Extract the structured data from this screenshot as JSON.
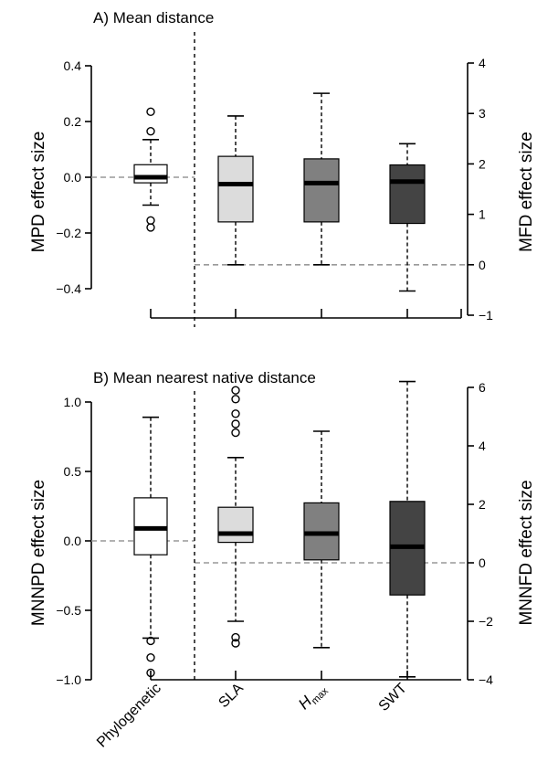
{
  "chart_data": [
    {
      "type": "box",
      "title": "A) Mean distance",
      "ylabel_left": "MPD effect size",
      "ylabel_right": "MFD effect size",
      "left_ticks": [
        -0.4,
        -0.2,
        0.0,
        0.2,
        0.4
      ],
      "left_tick_labels": [
        "−0.4",
        "−0.2",
        "0.0",
        "0.2",
        "0.4"
      ],
      "right_ticks": [
        -1,
        0,
        1,
        2,
        3,
        4
      ],
      "right_tick_labels": [
        "−1",
        "0",
        "1",
        "2",
        "3",
        "4"
      ],
      "left_ylim": [
        -0.5,
        0.4
      ],
      "right_ylim": [
        -1,
        4
      ],
      "left_reference": 0,
      "right_reference": 0,
      "boxes": [
        {
          "category": "Phylogenetic",
          "axis": "left",
          "color": "#ffffff",
          "whisker_low": -0.1,
          "q1": -0.02,
          "median": 0.0,
          "q3": 0.045,
          "whisker_high": 0.135,
          "outliers": [
            0.165,
            0.235,
            -0.155,
            -0.18
          ]
        },
        {
          "category": "SLA",
          "axis": "right",
          "color": "#dcdcdc",
          "whisker_low": 0.0,
          "q1": 0.85,
          "median": 1.6,
          "q3": 2.15,
          "whisker_high": 2.95,
          "outliers": []
        },
        {
          "category": "Hmax",
          "axis": "right",
          "color": "#808080",
          "whisker_low": 0.0,
          "q1": 0.85,
          "median": 1.62,
          "q3": 2.1,
          "whisker_high": 3.4,
          "outliers": []
        },
        {
          "category": "SWT",
          "axis": "right",
          "color": "#444444",
          "whisker_low": -0.52,
          "q1": 0.82,
          "median": 1.65,
          "q3": 1.98,
          "whisker_high": 2.4,
          "outliers": []
        }
      ]
    },
    {
      "type": "box",
      "title": "B) Mean nearest native distance",
      "ylabel_left": "MNNPD effect size",
      "ylabel_right": "MNNFD effect size",
      "left_ticks": [
        -1.0,
        -0.5,
        0.0,
        0.5,
        1.0
      ],
      "left_tick_labels": [
        "−1.0",
        "−0.5",
        "0.0",
        "0.5",
        "1.0"
      ],
      "right_ticks": [
        -4,
        -2,
        0,
        2,
        4,
        6
      ],
      "right_tick_labels": [
        "−4",
        "−2",
        "0",
        "2",
        "4",
        "6"
      ],
      "left_ylim": [
        -1.0,
        1.0
      ],
      "right_ylim": [
        -4,
        6
      ],
      "left_reference": 0,
      "right_reference": 0,
      "boxes": [
        {
          "category": "Phylogenetic",
          "axis": "left",
          "color": "#ffffff",
          "whisker_low": -0.7,
          "q1": -0.1,
          "median": 0.09,
          "q3": 0.31,
          "whisker_high": 0.89,
          "outliers": [
            -0.72,
            -0.84,
            -0.95
          ]
        },
        {
          "category": "SLA",
          "axis": "right",
          "color": "#dcdcdc",
          "whisker_low": -2.0,
          "q1": 0.7,
          "median": 1.0,
          "q3": 1.9,
          "whisker_high": 3.6,
          "outliers": [
            -2.55,
            -2.75,
            4.75,
            5.1,
            5.6,
            5.9,
            4.45
          ]
        },
        {
          "category": "Hmax",
          "axis": "right",
          "color": "#808080",
          "whisker_low": -2.9,
          "q1": 0.1,
          "median": 1.0,
          "q3": 2.05,
          "whisker_high": 4.5,
          "outliers": []
        },
        {
          "category": "SWT",
          "axis": "right",
          "color": "#444444",
          "whisker_low": -3.9,
          "q1": -1.1,
          "median": 0.55,
          "q3": 2.1,
          "whisker_high": 6.2,
          "outliers": []
        }
      ]
    }
  ],
  "x_labels": {
    "phylogenetic": "Phylogenetic",
    "sla": "SLA",
    "hmax_main": "H",
    "hmax_sub": "max",
    "swt": "SWT"
  }
}
